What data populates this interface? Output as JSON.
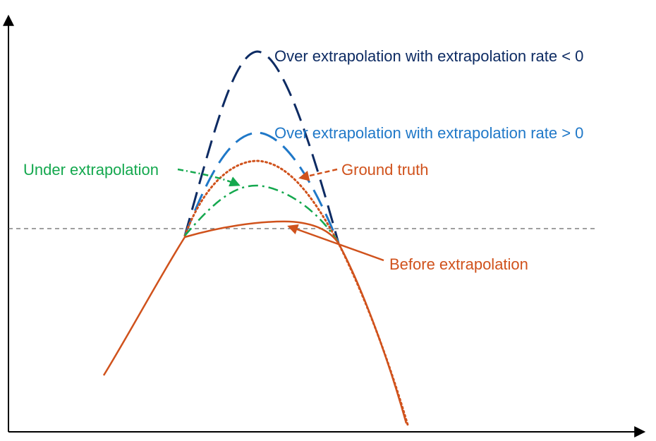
{
  "colors": {
    "axis": "#000000",
    "reference_line": "#666666",
    "over_neg": "#0d2b63",
    "over_pos": "#1f78c8",
    "ground_truth": "#d0521c",
    "under": "#14a84e",
    "before": "#d0521c"
  },
  "labels": {
    "over_neg": "Over extrapolation with extrapolation rate < 0",
    "over_pos": "Over extrapolation with extrapolation rate > 0",
    "under": "Under extrapolation",
    "ground_truth": "Ground truth",
    "before": "Before extrapolation"
  }
}
